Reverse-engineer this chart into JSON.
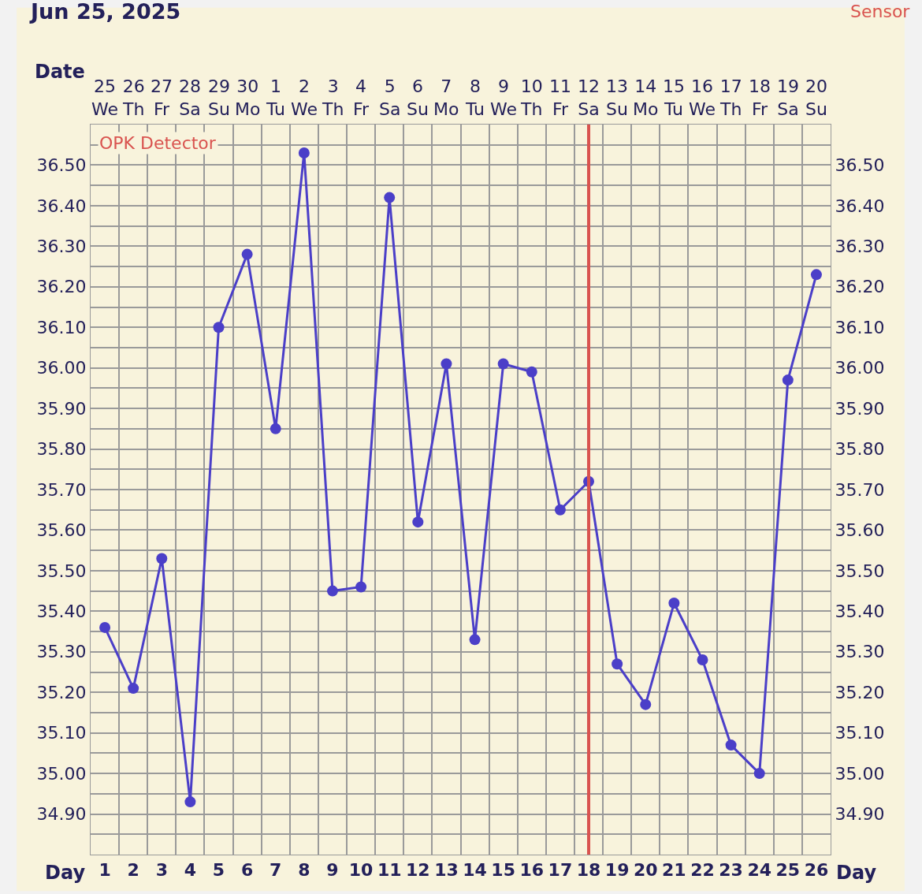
{
  "chart_data": {
    "type": "line",
    "title": "Jun 25, 2025",
    "xlabel": "Day",
    "x2label": "Date",
    "x": [
      1,
      2,
      3,
      4,
      5,
      6,
      7,
      8,
      9,
      10,
      11,
      12,
      13,
      14,
      15,
      16,
      17,
      18,
      19,
      20,
      21,
      22,
      23,
      24,
      25,
      26
    ],
    "xlim": [
      0.5,
      26.5
    ],
    "xticks": [
      1,
      2,
      3,
      4,
      5,
      6,
      7,
      8,
      9,
      10,
      11,
      12,
      13,
      14,
      15,
      16,
      17,
      18,
      19,
      20,
      21,
      22,
      23,
      24,
      25,
      26
    ],
    "annotations": [
      "OPK Detector",
      "Sensor",
      "25\nWe",
      "26\nTh",
      "27\nFr",
      "28\nSa",
      "29\nSu",
      "30\nMo",
      "1\nTu",
      "2\nWe",
      "3\nTh",
      "4\nFr",
      "5\nSa",
      "6\nSu",
      "7\nMo",
      "8\nTu",
      "9\nWe",
      "10\nTh",
      "11\nFr",
      "12\nSa",
      "13\nSu",
      "14\nMo",
      "15\nTu",
      "16\nWe",
      "17\nTh",
      "18\nFr",
      "19\nSa",
      "20\nSu"
    ],
    "series": [
      {
        "color": "#4b3fc8",
        "values": [
          35.36,
          35.21,
          35.53,
          34.93,
          36.1,
          36.28,
          35.85,
          36.53,
          35.45,
          35.46,
          36.42,
          35.62,
          36.01,
          35.33,
          36.01,
          35.99,
          35.65,
          35.72,
          35.27,
          35.17,
          35.42,
          35.28,
          35.07,
          35.0,
          35.97,
          36.23
        ]
      }
    ],
    "ylim": [
      34.8,
      36.6
    ],
    "yticks": [
      {
        "value": 34.9,
        "label": "34.90"
      },
      {
        "value": 35.0,
        "label": "35.00"
      },
      {
        "value": 35.1,
        "label": "35.10"
      },
      {
        "value": 35.2,
        "label": "35.20"
      },
      {
        "value": 35.3,
        "label": "35.30"
      },
      {
        "value": 35.4,
        "label": "35.40"
      },
      {
        "value": 35.5,
        "label": "35.50"
      },
      {
        "value": 35.6,
        "label": "35.60"
      },
      {
        "value": 35.7,
        "label": "35.70"
      },
      {
        "value": 35.8,
        "label": "35.80"
      },
      {
        "value": 35.9,
        "label": "35.90"
      },
      {
        "value": 36.0,
        "label": "36.00"
      },
      {
        "value": 36.1,
        "label": "36.10"
      },
      {
        "value": 36.2,
        "label": "36.20"
      },
      {
        "value": 36.3,
        "label": "36.30"
      },
      {
        "value": 36.4,
        "label": "36.40"
      },
      {
        "value": 36.5,
        "label": "36.50"
      }
    ],
    "y2lim": [
      34.8,
      36.6
    ],
    "y2ticks": [
      {
        "value": 34.9,
        "label": "34.90"
      },
      {
        "value": 35.0,
        "label": "35.00"
      },
      {
        "value": 35.1,
        "label": "35.10"
      },
      {
        "value": 35.2,
        "label": "35.20"
      },
      {
        "value": 35.3,
        "label": "35.30"
      },
      {
        "value": 35.4,
        "label": "35.40"
      },
      {
        "value": 35.5,
        "label": "35.50"
      },
      {
        "value": 35.6,
        "label": "35.60"
      },
      {
        "value": 35.7,
        "label": "35.70"
      },
      {
        "value": 35.8,
        "label": "35.80"
      },
      {
        "value": 35.9,
        "label": "35.90"
      },
      {
        "value": 36.0,
        "label": "36.00"
      },
      {
        "value": 36.1,
        "label": "36.10"
      },
      {
        "value": 36.2,
        "label": "36.20"
      },
      {
        "value": 36.3,
        "label": "36.30"
      },
      {
        "value": 36.4,
        "label": "36.40"
      },
      {
        "value": 36.5,
        "label": "36.50"
      }
    ],
    "ref_lines": [
      {
        "axis": "x",
        "value": 18,
        "color": "#d9534f"
      }
    ],
    "grid": true,
    "marker": "circle",
    "line_style": "solid"
  }
}
